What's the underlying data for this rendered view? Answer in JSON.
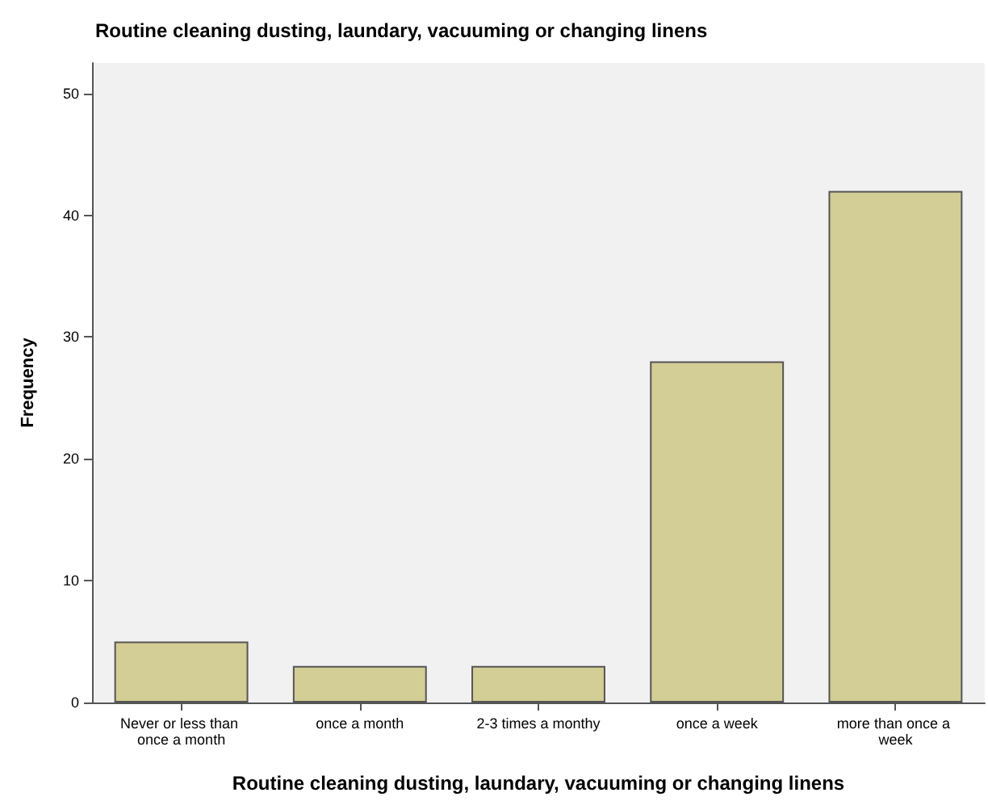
{
  "chart_data": {
    "type": "bar",
    "title": "Routine cleaning dusting, laundary, vacuuming or changing linens",
    "xlabel": "Routine cleaning dusting, laundary, vacuuming or changing linens",
    "ylabel": "Frequency",
    "categories": [
      "Never or less than once a month",
      "once a month",
      "2-3 times a monthy",
      "once a week",
      "more than once a week"
    ],
    "values": [
      5,
      3,
      3,
      28,
      42
    ],
    "color": "#d3cd96",
    "ylim": [
      0,
      52.5
    ],
    "yticks": [
      0,
      10,
      20,
      30,
      40,
      50
    ],
    "grid": false
  }
}
